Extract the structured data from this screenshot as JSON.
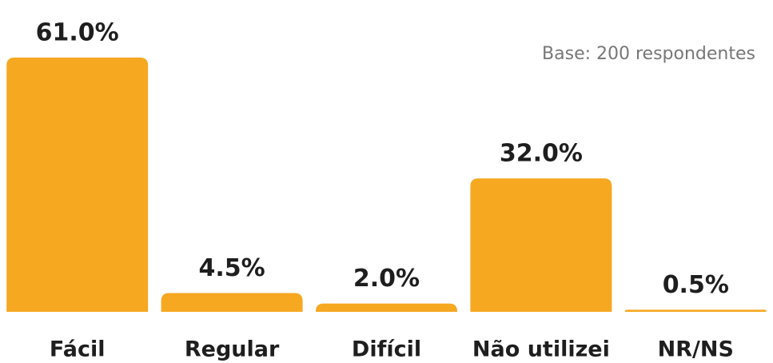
{
  "chart_data": {
    "type": "bar",
    "subtitle": "Base: 200 respondentes",
    "categories": [
      "Fácil",
      "Regular",
      "Difícil",
      "Não utilizei",
      "NR/NS"
    ],
    "values": [
      61.0,
      4.5,
      2.0,
      32.0,
      0.5
    ],
    "value_labels": [
      "61.0%",
      "4.5%",
      "2.0%",
      "32.0%",
      "0.5%"
    ],
    "color": "#f6a821"
  }
}
